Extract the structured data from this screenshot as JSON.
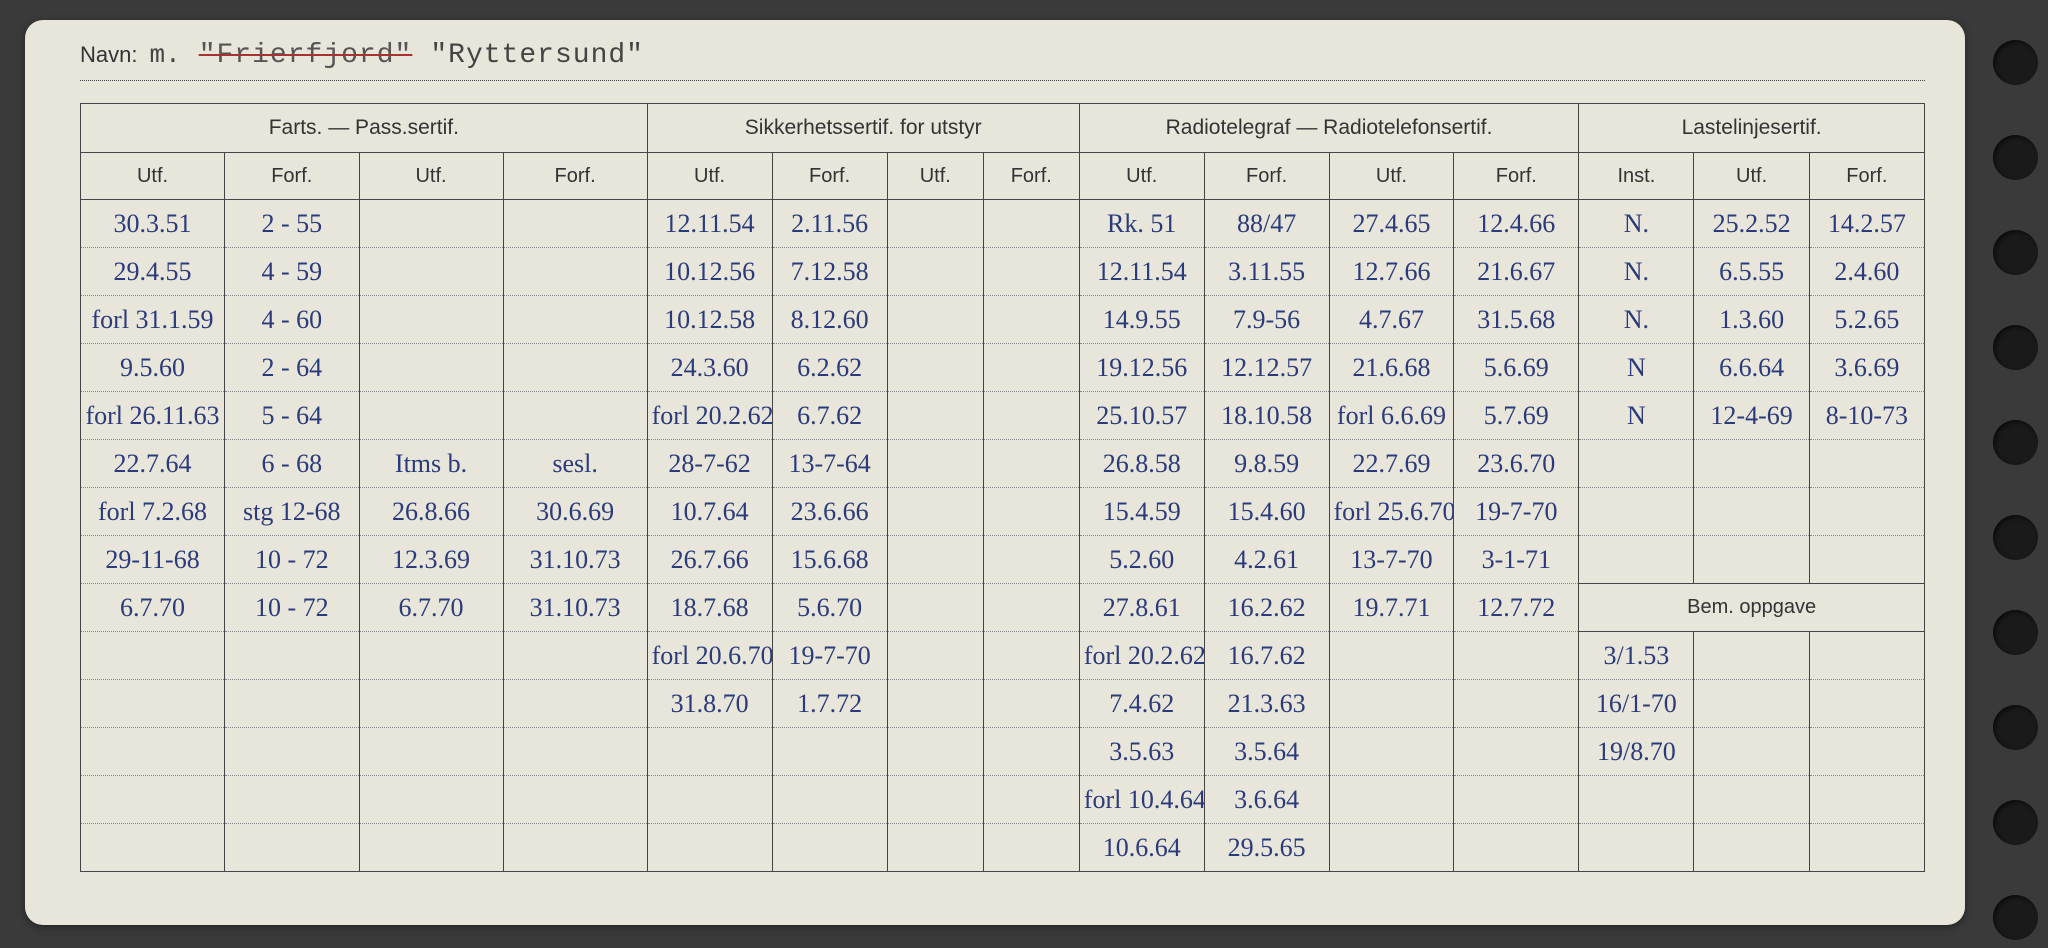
{
  "navn": {
    "label": "Navn:",
    "prefix": "m.",
    "strikethrough": "\"Frierfjord\"",
    "name": "\"Ryttersund\""
  },
  "groups": {
    "farts": "Farts. — Pass.sertif.",
    "sikkerhet": "Sikkerhetssertif. for utstyr",
    "radio": "Radiotelegraf — Radiotelefonsertif.",
    "laste": "Lastelinjesertif."
  },
  "subheads": {
    "utf": "Utf.",
    "forf": "Forf.",
    "inst": "Inst.",
    "bem": "Bem. oppgave"
  },
  "colors": {
    "paper": "#e8e5da",
    "ink_printed": "#333333",
    "ink_written": "#2a3a7a",
    "strike_red": "#a83232",
    "dotted": "#888888",
    "background": "#3a3a3a"
  },
  "rows": [
    {
      "f1": "30.3.51",
      "f2": "2 - 55",
      "f3": "",
      "f4": "",
      "s1": "12.11.54",
      "s2": "2.11.56",
      "s3": "",
      "s4": "",
      "r1": "Rk. 51",
      "r2": "88/47",
      "r3": "27.4.65",
      "r4": "12.4.66",
      "l1": "N.",
      "l2": "25.2.52",
      "l3": "14.2.57"
    },
    {
      "f1": "29.4.55",
      "f2": "4 - 59",
      "f3": "",
      "f4": "",
      "s1": "10.12.56",
      "s2": "7.12.58",
      "s3": "",
      "s4": "",
      "r1": "12.11.54",
      "r2": "3.11.55",
      "r3": "12.7.66",
      "r4": "21.6.67",
      "l1": "N.",
      "l2": "6.5.55",
      "l3": "2.4.60"
    },
    {
      "f1": "forl 31.1.59",
      "f2": "4 - 60",
      "f3": "",
      "f4": "",
      "s1": "10.12.58",
      "s2": "8.12.60",
      "s3": "",
      "s4": "",
      "r1": "14.9.55",
      "r2": "7.9-56",
      "r3": "4.7.67",
      "r4": "31.5.68",
      "l1": "N.",
      "l2": "1.3.60",
      "l3": "5.2.65"
    },
    {
      "f1": "9.5.60",
      "f2": "2 - 64",
      "f3": "",
      "f4": "",
      "s1": "24.3.60",
      "s2": "6.2.62",
      "s3": "",
      "s4": "",
      "r1": "19.12.56",
      "r2": "12.12.57",
      "r3": "21.6.68",
      "r4": "5.6.69",
      "l1": "N",
      "l2": "6.6.64",
      "l3": "3.6.69"
    },
    {
      "f1": "forl 26.11.63",
      "f2": "5 - 64",
      "f3": "",
      "f4": "",
      "s1": "forl 20.2.62",
      "s2": "6.7.62",
      "s3": "",
      "s4": "",
      "r1": "25.10.57",
      "r2": "18.10.58",
      "r3": "forl 6.6.69",
      "r4": "5.7.69",
      "l1": "N",
      "l2": "12-4-69",
      "l3": "8-10-73"
    },
    {
      "f1": "22.7.64",
      "f2": "6 - 68",
      "f3": "Itms b.",
      "f4": "sesl.",
      "s1": "28-7-62",
      "s2": "13-7-64",
      "s3": "",
      "s4": "",
      "r1": "26.8.58",
      "r2": "9.8.59",
      "r3": "22.7.69",
      "r4": "23.6.70",
      "l1": "",
      "l2": "",
      "l3": ""
    },
    {
      "f1": "forl 7.2.68",
      "f2": "stg 12-68",
      "f3": "26.8.66",
      "f4": "30.6.69",
      "s1": "10.7.64",
      "s2": "23.6.66",
      "s3": "",
      "s4": "",
      "r1": "15.4.59",
      "r2": "15.4.60",
      "r3": "forl 25.6.70",
      "r4": "19-7-70",
      "l1": "",
      "l2": "",
      "l3": ""
    },
    {
      "f1": "29-11-68",
      "f2": "10 - 72",
      "f3": "12.3.69",
      "f4": "31.10.73",
      "s1": "26.7.66",
      "s2": "15.6.68",
      "s3": "",
      "s4": "",
      "r1": "5.2.60",
      "r2": "4.2.61",
      "r3": "13-7-70",
      "r4": "3-1-71",
      "l1": "",
      "l2": "",
      "l3": ""
    },
    {
      "f1": "6.7.70",
      "f2": "10 - 72",
      "f3": "6.7.70",
      "f4": "31.10.73",
      "s1": "18.7.68",
      "s2": "5.6.70",
      "s3": "",
      "s4": "",
      "r1": "27.8.61",
      "r2": "16.2.62",
      "r3": "19.7.71",
      "r4": "12.7.72",
      "bem": true
    },
    {
      "f1": "",
      "f2": "",
      "f3": "",
      "f4": "",
      "s1": "forl 20.6.70",
      "s2": "19-7-70",
      "s3": "",
      "s4": "",
      "r1": "forl 20.2.62",
      "r2": "16.7.62",
      "r3": "",
      "r4": "",
      "l1": "3/1.53",
      "l2": "",
      "l3": ""
    },
    {
      "f1": "",
      "f2": "",
      "f3": "",
      "f4": "",
      "s1": "31.8.70",
      "s2": "1.7.72",
      "s3": "",
      "s4": "",
      "r1": "7.4.62",
      "r2": "21.3.63",
      "r3": "",
      "r4": "",
      "l1": "16/1-70",
      "l2": "",
      "l3": ""
    },
    {
      "f1": "",
      "f2": "",
      "f3": "",
      "f4": "",
      "s1": "",
      "s2": "",
      "s3": "",
      "s4": "",
      "r1": "3.5.63",
      "r2": "3.5.64",
      "r3": "",
      "r4": "",
      "l1": "19/8.70",
      "l2": "",
      "l3": ""
    },
    {
      "f1": "",
      "f2": "",
      "f3": "",
      "f4": "",
      "s1": "",
      "s2": "",
      "s3": "",
      "s4": "",
      "r1": "forl 10.4.64",
      "r2": "3.6.64",
      "r3": "",
      "r4": "",
      "l1": "",
      "l2": "",
      "l3": ""
    },
    {
      "f1": "",
      "f2": "",
      "f3": "",
      "f4": "",
      "s1": "",
      "s2": "",
      "s3": "",
      "s4": "",
      "r1": "10.6.64",
      "r2": "29.5.65",
      "r3": "",
      "r4": "",
      "l1": "",
      "l2": "",
      "l3": ""
    }
  ]
}
